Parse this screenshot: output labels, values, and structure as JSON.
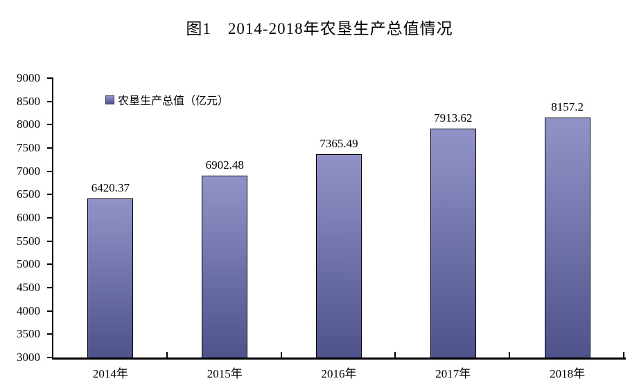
{
  "title": "图1　2014-2018年农垦生产总值情况",
  "legend": {
    "label": "农垦生产总值（亿元）"
  },
  "chart_data": {
    "type": "bar",
    "title": "图1　2014-2018年农垦生产总值情况",
    "categories": [
      "2014年",
      "2015年",
      "2016年",
      "2017年",
      "2018年"
    ],
    "series": [
      {
        "name": "农垦生产总值（亿元）",
        "values": [
          6420.37,
          6902.48,
          7365.49,
          7913.62,
          8157.2
        ]
      }
    ],
    "data_labels": [
      "6420.37",
      "6902.48",
      "7365.49",
      "7913.62",
      "8157.2"
    ],
    "xlabel": "",
    "ylabel": "",
    "ylim": [
      3000,
      9000
    ],
    "yticks": [
      3000,
      3500,
      4000,
      4500,
      5000,
      5500,
      6000,
      6500,
      7000,
      7500,
      8000,
      8500,
      9000
    ],
    "grid": false,
    "legend_position": "top-left-inside",
    "colors": {
      "bar_gradient_top": "#9193C8",
      "bar_gradient_bottom": "#4F528B",
      "bar_border": "#000000",
      "axis": "#000000",
      "text": "#000000",
      "background": "#FFFFFF"
    }
  }
}
